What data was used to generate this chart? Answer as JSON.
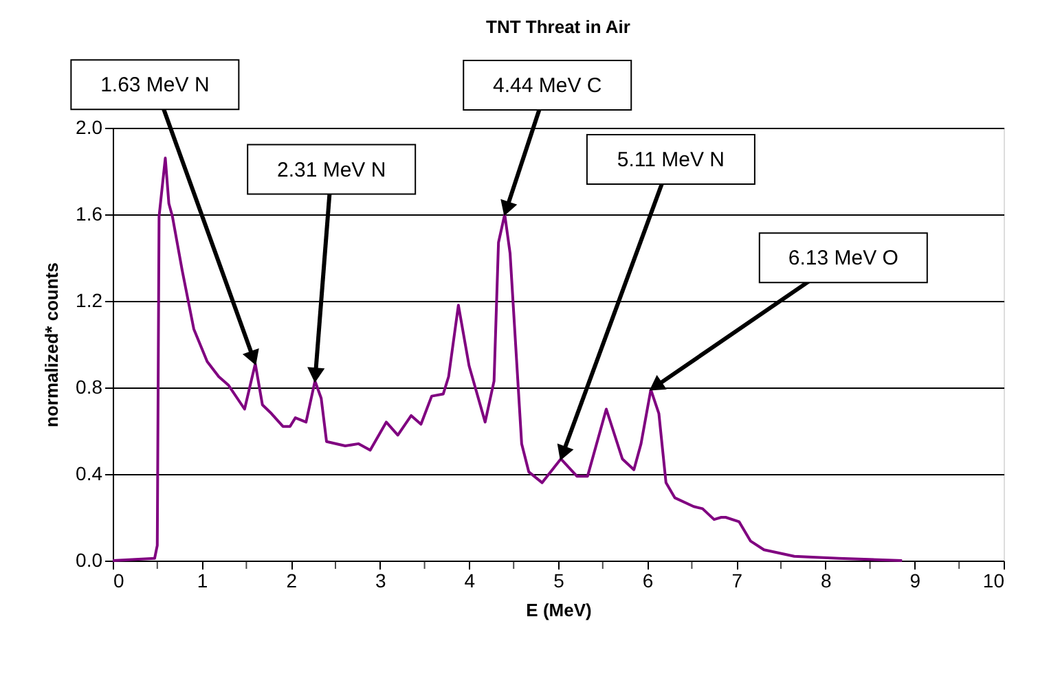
{
  "chart_data": {
    "type": "line",
    "title": "TNT Threat in Air",
    "xlabel": "E (MeV)",
    "ylabel": "normalized* counts",
    "x": [
      0,
      0.47,
      0.5,
      0.52,
      0.59,
      0.63,
      0.67,
      0.78,
      0.91,
      1.06,
      1.19,
      1.3,
      1.48,
      1.6,
      1.68,
      1.78,
      1.91,
      1.99,
      2.05,
      2.17,
      2.27,
      2.34,
      2.4,
      2.61,
      2.76,
      2.89,
      3.07,
      3.2,
      3.35,
      3.46,
      3.58,
      3.71,
      3.77,
      3.88,
      4.0,
      4.18,
      4.28,
      4.33,
      4.4,
      4.46,
      4.59,
      4.67,
      4.82,
      5.03,
      5.21,
      5.33,
      5.54,
      5.72,
      5.85,
      5.93,
      6.04,
      6.13,
      6.21,
      6.31,
      6.52,
      6.62,
      6.75,
      6.83,
      6.88,
      7.03,
      7.16,
      7.31,
      7.65,
      8.15,
      8.86
    ],
    "series": [
      {
        "color": "#800080",
        "values": [
          0,
          0.01,
          0.07,
          1.59,
          1.86,
          1.65,
          1.59,
          1.34,
          1.07,
          0.92,
          0.85,
          0.81,
          0.7,
          0.91,
          0.72,
          0.68,
          0.62,
          0.62,
          0.66,
          0.64,
          0.83,
          0.75,
          0.55,
          0.53,
          0.54,
          0.51,
          0.64,
          0.58,
          0.67,
          0.63,
          0.76,
          0.77,
          0.85,
          1.18,
          0.9,
          0.64,
          0.83,
          1.47,
          1.6,
          1.42,
          0.54,
          0.41,
          0.36,
          0.47,
          0.39,
          0.39,
          0.7,
          0.47,
          0.42,
          0.54,
          0.79,
          0.68,
          0.36,
          0.29,
          0.25,
          0.24,
          0.19,
          0.2,
          0.2,
          0.18,
          0.09,
          0.05,
          0.02,
          0.01,
          0
        ]
      }
    ],
    "xlim": [
      0,
      10
    ],
    "xticks": [
      0,
      {
        "value": 0.5,
        "label": null
      },
      1,
      {
        "value": 1.5,
        "label": null
      },
      2,
      {
        "value": 2.5,
        "label": null
      },
      3,
      {
        "value": 3.5,
        "label": null
      },
      4,
      {
        "value": 4.5,
        "label": null
      },
      5,
      {
        "value": 5.5,
        "label": null
      },
      6,
      {
        "value": 6.5,
        "label": null
      },
      7,
      {
        "value": 7.5,
        "label": null
      },
      8,
      {
        "value": 8.5,
        "label": null
      },
      9,
      {
        "value": 9.5,
        "label": null
      },
      10
    ],
    "ylim": [
      0,
      2
    ],
    "yticks": [
      {
        "value": 0,
        "label": "0.0"
      },
      {
        "value": 0.4,
        "label": "0.4"
      },
      {
        "value": 0.8,
        "label": "0.8"
      },
      {
        "value": 1.2,
        "label": "1.2"
      },
      {
        "value": 1.6,
        "label": "1.6"
      },
      {
        "value": 2,
        "label": "2.0"
      }
    ],
    "grid": "y",
    "line_style": "solid",
    "marker": "none",
    "annotations": [
      {
        "text": "1.63 MeV N",
        "x": 1.6,
        "y": 0.91
      },
      {
        "text": "2.31 MeV N",
        "x": 2.27,
        "y": 0.83
      },
      {
        "text": "4.44 MeV C",
        "x": 4.4,
        "y": 1.6
      },
      {
        "text": "5.11 MeV N",
        "x": 5.03,
        "y": 0.47
      },
      {
        "text": "6.13 MeV O",
        "x": 6.04,
        "y": 0.79
      }
    ]
  }
}
